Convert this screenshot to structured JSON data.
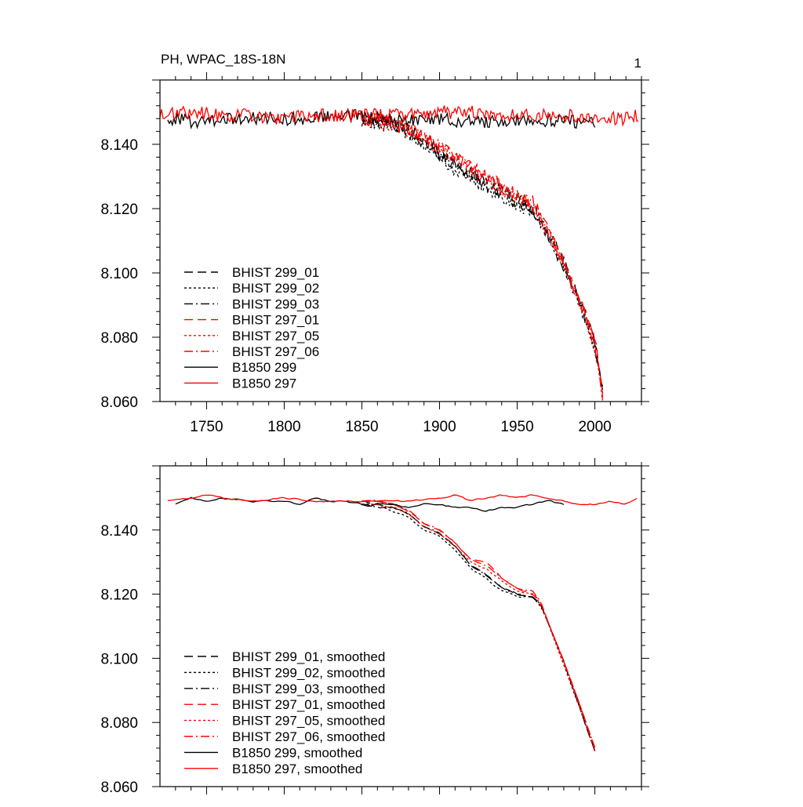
{
  "page_number": "1",
  "chart_data": [
    {
      "type": "line",
      "title": "PH, WPAC_18S-18N",
      "xlabel": "",
      "ylabel": "",
      "xlim": [
        1720,
        2030
      ],
      "ylim": [
        8.06,
        8.16
      ],
      "xticks": [
        1750,
        1800,
        1850,
        1900,
        1950,
        2000
      ],
      "xtick_labels": [
        "1750",
        "1800",
        "1850",
        "1900",
        "1950",
        "2000"
      ],
      "yticks": [
        8.06,
        8.08,
        8.1,
        8.12,
        8.14
      ],
      "ytick_labels": [
        "8.060",
        "8.080",
        "8.100",
        "8.120",
        "8.140"
      ],
      "legend_position": "lower-left",
      "series": [
        {
          "name": "BHIST 299_01",
          "color": "#000000",
          "dash": "long-dash",
          "x": [
            1850,
            1870,
            1890,
            1900,
            1910,
            1930,
            1950,
            1960,
            1970,
            1980,
            1990,
            2000,
            2005
          ],
          "y": [
            8.148,
            8.147,
            8.142,
            8.137,
            8.134,
            8.128,
            8.123,
            8.12,
            8.113,
            8.103,
            8.092,
            8.078,
            8.062
          ]
        },
        {
          "name": "BHIST 299_02",
          "color": "#000000",
          "dash": "dotted",
          "x": [
            1850,
            1870,
            1890,
            1900,
            1910,
            1930,
            1950,
            1960,
            1970,
            1980,
            1990,
            2000,
            2005
          ],
          "y": [
            8.147,
            8.146,
            8.14,
            8.136,
            8.132,
            8.126,
            8.121,
            8.119,
            8.112,
            8.102,
            8.091,
            8.077,
            8.063
          ]
        },
        {
          "name": "BHIST 299_03",
          "color": "#000000",
          "dash": "dash-dot",
          "x": [
            1850,
            1870,
            1890,
            1900,
            1910,
            1930,
            1950,
            1960,
            1970,
            1980,
            1990,
            2000,
            2005
          ],
          "y": [
            8.148,
            8.146,
            8.141,
            8.137,
            8.133,
            8.127,
            8.122,
            8.12,
            8.112,
            8.102,
            8.091,
            8.078,
            8.063
          ]
        },
        {
          "name": "BHIST 297_01",
          "color": "#ff0000",
          "dash": "long-dash",
          "x": [
            1850,
            1870,
            1890,
            1900,
            1910,
            1930,
            1950,
            1960,
            1970,
            1980,
            1990,
            2000,
            2005
          ],
          "y": [
            8.148,
            8.147,
            8.143,
            8.139,
            8.136,
            8.13,
            8.124,
            8.121,
            8.113,
            8.103,
            8.092,
            8.079,
            8.063
          ]
        },
        {
          "name": "BHIST 297_05",
          "color": "#ff0000",
          "dash": "dotted",
          "x": [
            1850,
            1870,
            1890,
            1900,
            1910,
            1930,
            1950,
            1960,
            1970,
            1980,
            1990,
            2000,
            2005
          ],
          "y": [
            8.147,
            8.146,
            8.142,
            8.138,
            8.135,
            8.129,
            8.123,
            8.121,
            8.112,
            8.102,
            8.091,
            8.077,
            8.062
          ]
        },
        {
          "name": "BHIST 297_06",
          "color": "#ff0000",
          "dash": "dash-dot",
          "x": [
            1850,
            1870,
            1890,
            1900,
            1910,
            1930,
            1950,
            1960,
            1970,
            1980,
            1990,
            2000,
            2005
          ],
          "y": [
            8.148,
            8.147,
            8.142,
            8.139,
            8.136,
            8.13,
            8.124,
            8.122,
            8.113,
            8.103,
            8.092,
            8.078,
            8.061
          ]
        },
        {
          "name": "B1850 299",
          "color": "#000000",
          "dash": "solid",
          "x": [
            1725,
            1740,
            1760,
            1780,
            1800,
            1820,
            1840,
            1860,
            1880,
            1900,
            1920,
            1940,
            1960,
            1980,
            2000
          ],
          "y": [
            8.148,
            8.147,
            8.148,
            8.148,
            8.148,
            8.148,
            8.149,
            8.148,
            8.147,
            8.148,
            8.147,
            8.147,
            8.148,
            8.147,
            8.147
          ]
        },
        {
          "name": "B1850 297",
          "color": "#ff0000",
          "dash": "solid",
          "x": [
            1720,
            1740,
            1760,
            1780,
            1800,
            1820,
            1840,
            1860,
            1880,
            1900,
            1920,
            1940,
            1960,
            1980,
            2000,
            2020,
            2028
          ],
          "y": [
            8.149,
            8.15,
            8.149,
            8.149,
            8.148,
            8.149,
            8.149,
            8.149,
            8.149,
            8.15,
            8.15,
            8.149,
            8.149,
            8.149,
            8.148,
            8.148,
            8.149
          ]
        }
      ]
    },
    {
      "type": "line",
      "title": "",
      "xlabel": "",
      "ylabel": "",
      "xlim": [
        1720,
        2030
      ],
      "ylim": [
        8.06,
        8.16
      ],
      "xticks": [
        1750,
        1800,
        1850,
        1900,
        1950,
        2000
      ],
      "xtick_labels": [],
      "yticks": [
        8.06,
        8.08,
        8.1,
        8.12,
        8.14
      ],
      "ytick_labels": [
        "8.060",
        "8.080",
        "8.100",
        "8.120",
        "8.140"
      ],
      "legend_position": "lower-left",
      "series": [
        {
          "name": "BHIST 299_01, smoothed",
          "color": "#000000",
          "dash": "long-dash",
          "x": [
            1850,
            1860,
            1870,
            1880,
            1890,
            1900,
            1910,
            1920,
            1930,
            1940,
            1950,
            1960,
            1965,
            1970,
            1980,
            1990,
            2000
          ],
          "y": [
            8.149,
            8.148,
            8.147,
            8.145,
            8.141,
            8.139,
            8.135,
            8.129,
            8.126,
            8.122,
            8.12,
            8.119,
            8.117,
            8.111,
            8.099,
            8.085,
            8.071
          ]
        },
        {
          "name": "BHIST 299_02, smoothed",
          "color": "#000000",
          "dash": "dotted",
          "x": [
            1850,
            1860,
            1870,
            1880,
            1890,
            1900,
            1910,
            1920,
            1930,
            1940,
            1950,
            1960,
            1965,
            1970,
            1980,
            1990,
            2000
          ],
          "y": [
            8.148,
            8.148,
            8.146,
            8.144,
            8.14,
            8.138,
            8.134,
            8.128,
            8.125,
            8.121,
            8.119,
            8.119,
            8.116,
            8.111,
            8.098,
            8.085,
            8.071
          ]
        },
        {
          "name": "BHIST 299_03, smoothed",
          "color": "#000000",
          "dash": "dash-dot",
          "x": [
            1850,
            1860,
            1870,
            1880,
            1890,
            1900,
            1910,
            1920,
            1930,
            1940,
            1950,
            1960,
            1965,
            1970,
            1980,
            1990,
            2000
          ],
          "y": [
            8.148,
            8.147,
            8.147,
            8.145,
            8.141,
            8.139,
            8.135,
            8.129,
            8.126,
            8.122,
            8.12,
            8.119,
            8.117,
            8.111,
            8.099,
            8.085,
            8.071
          ]
        },
        {
          "name": "BHIST 297_01, smoothed",
          "color": "#ff0000",
          "dash": "long-dash",
          "x": [
            1850,
            1860,
            1870,
            1880,
            1890,
            1900,
            1910,
            1920,
            1930,
            1940,
            1950,
            1960,
            1965,
            1970,
            1980,
            1990,
            2000
          ],
          "y": [
            8.149,
            8.149,
            8.148,
            8.146,
            8.142,
            8.14,
            8.136,
            8.131,
            8.13,
            8.125,
            8.122,
            8.12,
            8.118,
            8.111,
            8.099,
            8.086,
            8.072
          ]
        },
        {
          "name": "BHIST 297_05, smoothed",
          "color": "#ff0000",
          "dash": "dotted",
          "x": [
            1850,
            1860,
            1870,
            1880,
            1890,
            1900,
            1910,
            1920,
            1930,
            1940,
            1950,
            1960,
            1965,
            1970,
            1980,
            1990,
            2000
          ],
          "y": [
            8.148,
            8.148,
            8.147,
            8.145,
            8.141,
            8.139,
            8.135,
            8.13,
            8.128,
            8.124,
            8.121,
            8.12,
            8.117,
            8.111,
            8.098,
            8.085,
            8.071
          ]
        },
        {
          "name": "BHIST 297_06, smoothed",
          "color": "#ff0000",
          "dash": "dash-dot",
          "x": [
            1850,
            1860,
            1870,
            1880,
            1890,
            1900,
            1910,
            1920,
            1930,
            1940,
            1950,
            1960,
            1965,
            1970,
            1980,
            1990,
            2000
          ],
          "y": [
            8.149,
            8.149,
            8.148,
            8.146,
            8.142,
            8.14,
            8.136,
            8.131,
            8.129,
            8.125,
            8.122,
            8.121,
            8.118,
            8.111,
            8.099,
            8.086,
            8.072
          ]
        },
        {
          "name": "B1850 299, smoothed",
          "color": "#000000",
          "dash": "solid",
          "x": [
            1730,
            1740,
            1750,
            1760,
            1780,
            1800,
            1810,
            1820,
            1830,
            1840,
            1850,
            1855,
            1860,
            1870,
            1880,
            1890,
            1900,
            1910,
            1920,
            1930,
            1940,
            1950,
            1960,
            1970,
            1980
          ],
          "y": [
            8.148,
            8.15,
            8.149,
            8.15,
            8.149,
            8.149,
            8.148,
            8.15,
            8.149,
            8.149,
            8.148,
            8.147,
            8.148,
            8.148,
            8.147,
            8.148,
            8.148,
            8.147,
            8.147,
            8.146,
            8.147,
            8.147,
            8.148,
            8.149,
            8.148
          ]
        },
        {
          "name": "B1850 297, smoothed",
          "color": "#ff0000",
          "dash": "solid",
          "x": [
            1725,
            1740,
            1750,
            1760,
            1780,
            1800,
            1820,
            1840,
            1860,
            1880,
            1900,
            1910,
            1920,
            1930,
            1940,
            1950,
            1960,
            1970,
            1980,
            1990,
            2000,
            2010,
            2020,
            2028
          ],
          "y": [
            8.149,
            8.15,
            8.151,
            8.15,
            8.149,
            8.15,
            8.149,
            8.149,
            8.149,
            8.149,
            8.15,
            8.151,
            8.149,
            8.15,
            8.151,
            8.15,
            8.151,
            8.15,
            8.149,
            8.148,
            8.148,
            8.149,
            8.148,
            8.15
          ]
        }
      ]
    }
  ]
}
